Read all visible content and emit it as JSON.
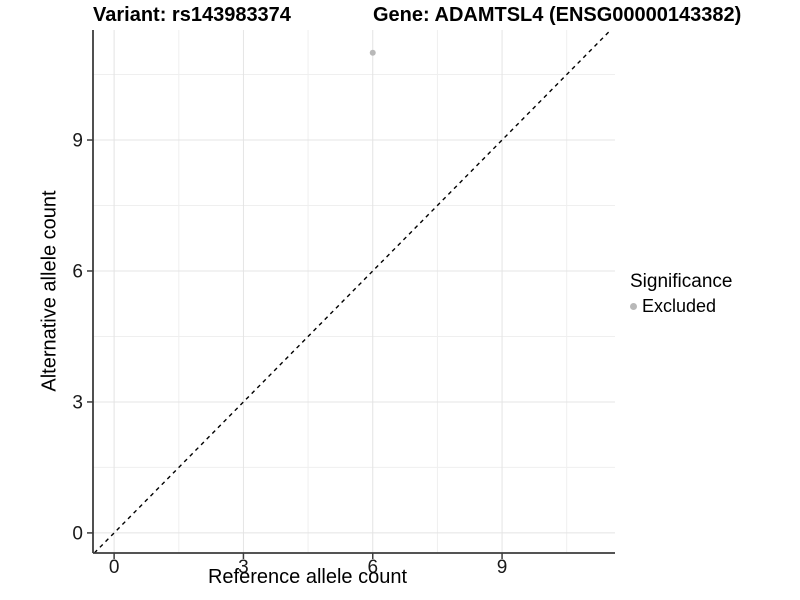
{
  "header": {
    "title_left": "Variant: rs143983374",
    "title_right": "Gene: ADAMTSL4 (ENSG00000143382)"
  },
  "chart_data": {
    "type": "scatter",
    "title": "Variant: rs143983374 / Gene: ADAMTSL4 (ENSG00000143382)",
    "xlabel": "Reference allele count",
    "ylabel": "Alternative allele count",
    "xlim": [
      -0.49,
      11.62
    ],
    "ylim": [
      -0.46,
      11.52
    ],
    "xticks": [
      0,
      3,
      6,
      9
    ],
    "yticks": [
      0,
      3,
      6,
      9
    ],
    "minor_xticks": [
      1.5,
      4.5,
      7.5,
      10.5
    ],
    "minor_yticks": [
      1.5,
      4.5,
      7.5,
      10.5
    ],
    "grid": true,
    "series": [
      {
        "name": "Excluded",
        "marker": "circle",
        "color": "#b8b8b8",
        "points": [
          [
            6,
            11
          ]
        ]
      }
    ],
    "reference_line": {
      "slope": 1,
      "intercept": 0,
      "style": "dashed",
      "color": "#000000"
    },
    "legend": {
      "position": "right",
      "title": "Significance",
      "items": [
        {
          "label": "Excluded",
          "color": "#b8b8b8",
          "marker": "circle"
        }
      ]
    },
    "colors": {
      "axis_line": "#3c3c3c",
      "tick_text": "#1a1a1a",
      "grid_major": "#e4e4e4",
      "grid_minor": "#efefef",
      "panel_background": "#ffffff"
    },
    "tick_font_size": 19
  }
}
